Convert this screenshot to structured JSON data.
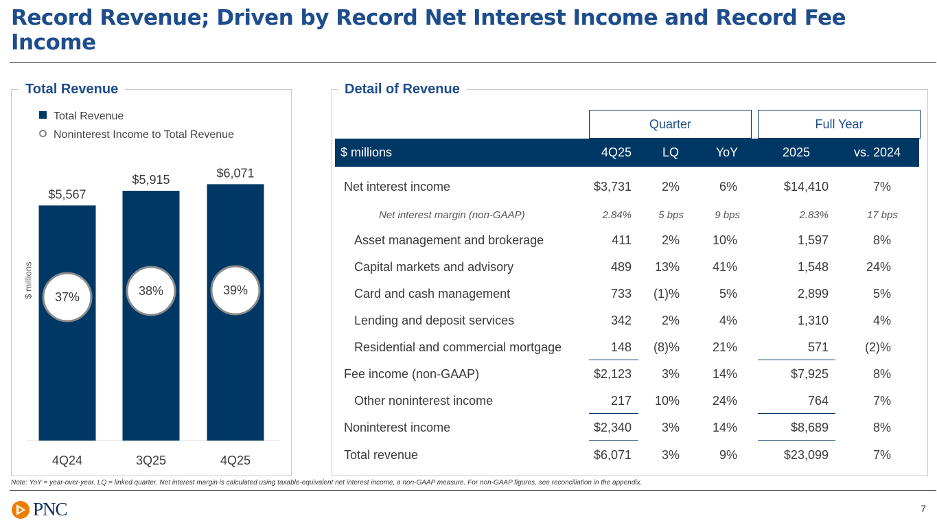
{
  "title": "Record Revenue; Driven by Record Net Interest Income and Record Fee Income",
  "left_panel": {
    "title": "Total Revenue",
    "legend": [
      "Total Revenue",
      "Noninterest Income to Total Revenue"
    ],
    "y_axis_label": "$ millions"
  },
  "chart_data": {
    "type": "bar",
    "title": "Total Revenue",
    "categories": [
      "4Q24",
      "3Q25",
      "4Q25"
    ],
    "series": [
      {
        "name": "Total Revenue",
        "values": [
          5567,
          5915,
          6071
        ],
        "labels": [
          "$5,567",
          "$5,915",
          "$6,071"
        ]
      },
      {
        "name": "Noninterest Income to Total Revenue",
        "values": [
          37,
          38,
          39
        ],
        "labels": [
          "37%",
          "38%",
          "39%"
        ]
      }
    ],
    "ylabel": "$ millions",
    "ylim": [
      0,
      6500
    ],
    "colors": {
      "bar": "#003865",
      "circle_border": "#8a8a8a"
    }
  },
  "right_panel": {
    "title": "Detail of Revenue",
    "group_headers": {
      "quarter": "Quarter",
      "full_year": "Full Year"
    },
    "columns": [
      "$ millions",
      "4Q25",
      "LQ",
      "YoY",
      "2025",
      "vs. 2024"
    ],
    "rows": [
      {
        "label": "Net interest income",
        "v": [
          "$3,731",
          "2%",
          "6%",
          "$14,410",
          "7%"
        ]
      },
      {
        "label": "Net interest margin (non-GAAP)",
        "v": [
          "2.84%",
          "5 bps",
          "9 bps",
          "2.83%",
          "17 bps"
        ]
      },
      {
        "label": "Asset management and brokerage",
        "v": [
          "411",
          "2%",
          "10%",
          "1,597",
          "8%"
        ]
      },
      {
        "label": "Capital markets and advisory",
        "v": [
          "489",
          "13%",
          "41%",
          "1,548",
          "24%"
        ]
      },
      {
        "label": "Card and cash management",
        "v": [
          "733",
          "(1)%",
          "5%",
          "2,899",
          "5%"
        ]
      },
      {
        "label": "Lending and deposit services",
        "v": [
          "342",
          "2%",
          "4%",
          "1,310",
          "4%"
        ]
      },
      {
        "label": "Residential and commercial mortgage",
        "v": [
          "148",
          "(8)%",
          "21%",
          "571",
          "(2)%"
        ]
      },
      {
        "label": "Fee income (non-GAAP)",
        "v": [
          "$2,123",
          "3%",
          "14%",
          "$7,925",
          "8%"
        ]
      },
      {
        "label": "Other noninterest income",
        "v": [
          "217",
          "10%",
          "24%",
          "764",
          "7%"
        ]
      },
      {
        "label": "Noninterest income",
        "v": [
          "$2,340",
          "3%",
          "14%",
          "$8,689",
          "8%"
        ]
      },
      {
        "label": "Total revenue",
        "v": [
          "$6,071",
          "3%",
          "9%",
          "$23,099",
          "7%"
        ]
      }
    ]
  },
  "note": "Note: YoY = year-over-year. LQ = linked quarter. Net interest margin is calculated using taxable-equivalent net interest income, a non-GAAP measure. For non-GAAP figures, see reconciliation in the appendix.",
  "logo_text": "PNC",
  "page_number": "7"
}
